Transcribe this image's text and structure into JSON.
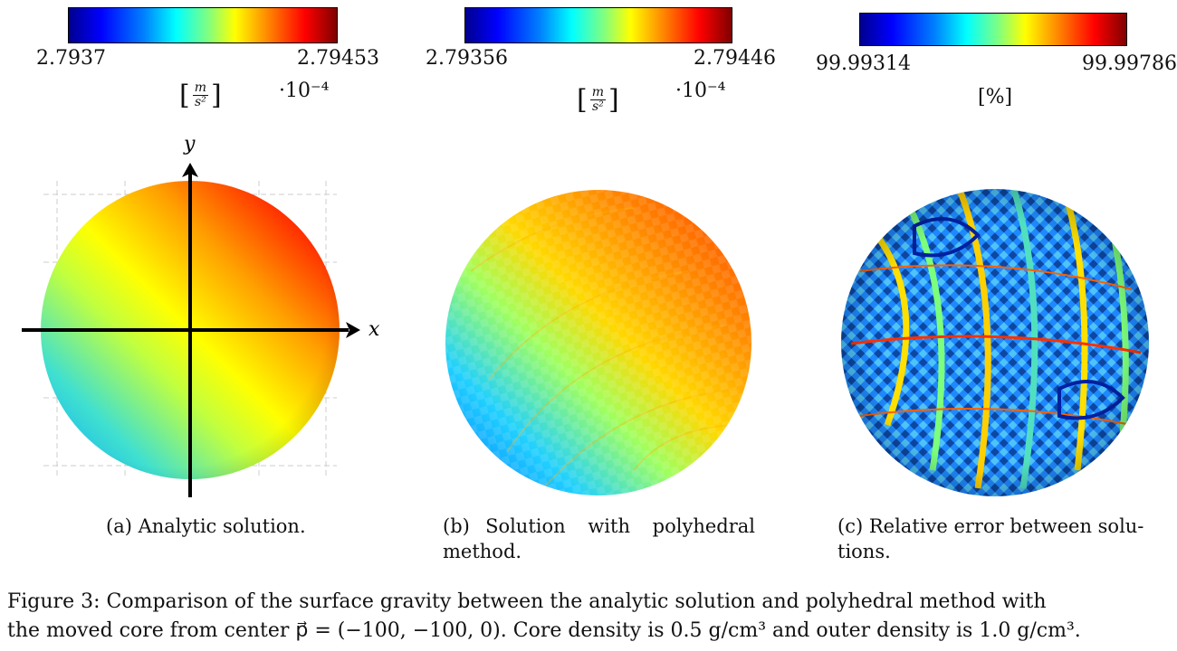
{
  "panels": [
    {
      "colorbar": {
        "min": "2.7937",
        "max": "2.79453",
        "unit": "[m/s²]",
        "unit_num": "m",
        "unit_den": "s²",
        "scale": "·10⁻⁴"
      },
      "caption_label": "(a)",
      "caption_text": "Analytic solution.",
      "axes": {
        "x": "x",
        "y": "y"
      }
    },
    {
      "colorbar": {
        "min": "2.79356",
        "max": "2.79446",
        "unit": "[m/s²]",
        "unit_num": "m",
        "unit_den": "s²",
        "scale": "·10⁻⁴"
      },
      "caption_label": "(b)",
      "caption_line1": "Solution with polyhedral",
      "caption_line2": "method."
    },
    {
      "colorbar": {
        "min": "99.99314",
        "max": "99.99786",
        "unit": "[%]"
      },
      "caption_label": "(c)",
      "caption_line1": "Relative error between solu-",
      "caption_line2": "tions."
    }
  ],
  "figure_caption": {
    "label": "Figure 3:",
    "line1": "Comparison of the surface gravity between the analytic solution and polyhedral method with",
    "line2": "the moved core from center p⃗ = (−100, −100, 0). Core density is 0.5 g/cm³ and outer density is 1.0 g/cm³."
  },
  "colors": {
    "jet_low": "#00008f",
    "jet_mid": "#ffff00",
    "jet_high": "#800000"
  }
}
